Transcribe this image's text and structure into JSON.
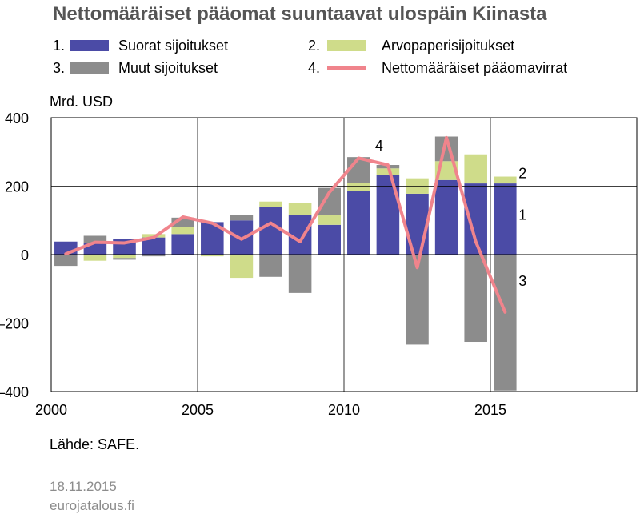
{
  "title": "Nettomääräiset pääomat suuntaavat ulospäin Kiinasta",
  "legend": [
    {
      "num": "1.",
      "label": "Suorat sijoitukset",
      "color": "#4b4ba6",
      "kind": "bar"
    },
    {
      "num": "2.",
      "label": "Arvopaperisijoitukset",
      "color": "#cfdc8a",
      "kind": "bar"
    },
    {
      "num": "3.",
      "label": "Muut sijoitukset",
      "color": "#8c8c8c",
      "kind": "bar"
    },
    {
      "num": "4.",
      "label": "Nettomääräiset pääomavirrat",
      "color": "#f0848c",
      "kind": "line"
    }
  ],
  "unit": "Mrd. USD",
  "source": "Lähde: SAFE.",
  "date": "18.11.2015",
  "site": "eurojatalous.fi",
  "chart_data": {
    "type": "bar",
    "stacked": true,
    "ylim": [
      -400,
      400
    ],
    "yticks": [
      400,
      200,
      0,
      -200,
      -400
    ],
    "ytick_labels": [
      "400",
      "200",
      "0",
      "–200",
      "–400"
    ],
    "xlim": [
      2000,
      2020
    ],
    "xticks": [
      2000,
      2005,
      2010,
      2015
    ],
    "xtick_labels": [
      "2000",
      "2005",
      "2010",
      "2015"
    ],
    "categories": [
      2000,
      2001,
      2002,
      2003,
      2004,
      2005,
      2006,
      2007,
      2008,
      2009,
      2010,
      2011,
      2012,
      2013,
      2014,
      2015
    ],
    "series": [
      {
        "key": "fdi",
        "name": "Suorat sijoitukset",
        "color": "#4b4ba6",
        "values": [
          38,
          35,
          45,
          50,
          60,
          95,
          100,
          140,
          115,
          87,
          185,
          232,
          178,
          218,
          208,
          208
        ]
      },
      {
        "key": "portfolio",
        "name": "Arvopaperisijoitukset",
        "color": "#cfdc8a",
        "values": [
          0,
          -18,
          -10,
          10,
          20,
          -5,
          -68,
          15,
          35,
          28,
          25,
          20,
          45,
          55,
          85,
          20
        ]
      },
      {
        "key": "other",
        "name": "Muut sijoitukset",
        "color": "#8c8c8c",
        "values": [
          -33,
          20,
          -5,
          -5,
          28,
          0,
          15,
          -65,
          -112,
          80,
          75,
          10,
          -263,
          72,
          -255,
          -397
        ]
      }
    ],
    "line": {
      "name": "Nettomääräiset pääomavirrat",
      "color": "#f0848c",
      "values": [
        2,
        36,
        34,
        50,
        110,
        92,
        45,
        92,
        38,
        182,
        282,
        262,
        -38,
        342,
        38,
        -168
      ]
    },
    "annotations": [
      {
        "text": "4",
        "x": 2011.2,
        "y": 320
      },
      {
        "text": "2",
        "x": 2016.1,
        "y": 240
      },
      {
        "text": "1",
        "x": 2016.1,
        "y": 118
      },
      {
        "text": "3",
        "x": 2016.1,
        "y": -75
      }
    ]
  }
}
